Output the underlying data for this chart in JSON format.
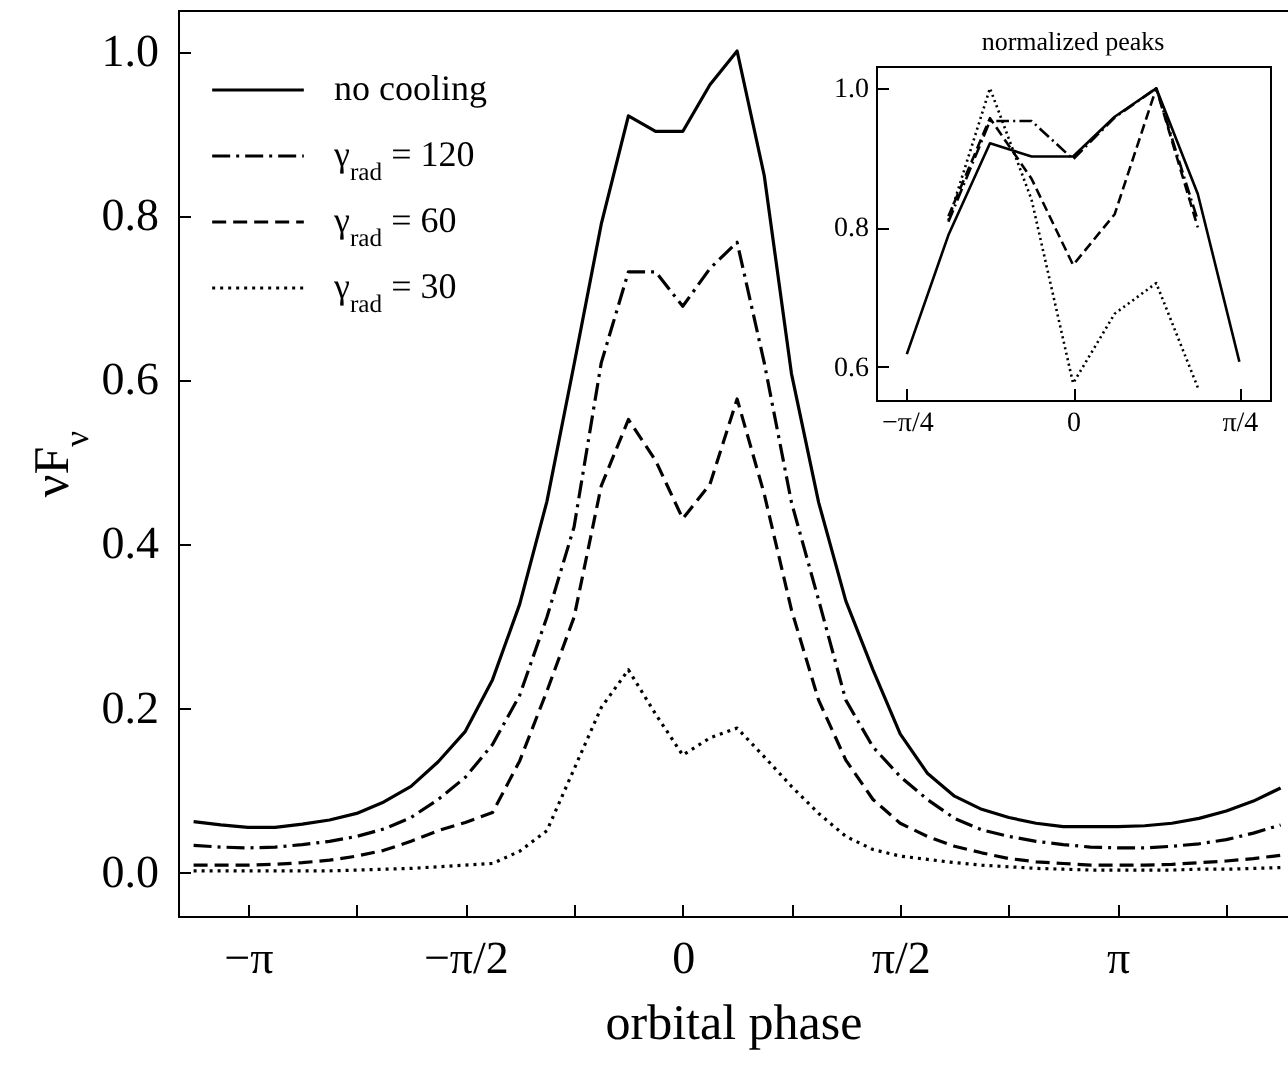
{
  "chart_data": [
    {
      "type": "line",
      "xlabel": "orbital phase",
      "ylabel": "νF$_{ν}$",
      "legend": "top left",
      "x": [
        -3.5343,
        -3.3379,
        -3.1416,
        -2.9452,
        -2.7489,
        -2.5525,
        -2.3562,
        -2.1598,
        -1.9635,
        -1.7671,
        -1.5708,
        -1.3744,
        -1.1781,
        -0.9817,
        -0.7854,
        -0.589,
        -0.3927,
        -0.1963,
        0,
        0.1963,
        0.3927,
        0.589,
        0.7854,
        0.9817,
        1.1781,
        1.3744,
        1.5708,
        1.7671,
        1.9635,
        2.1598,
        2.3562,
        2.5525,
        2.7489,
        2.9452,
        3.1416,
        3.3379,
        3.5343,
        3.7306,
        3.927,
        4.1233,
        4.3197
      ],
      "series": [
        {
          "name": "no cooling",
          "color": "#000000",
          "line_style": "solid",
          "values": [
            0.061,
            0.057,
            0.054,
            0.054,
            0.058,
            0.063,
            0.071,
            0.085,
            0.104,
            0.134,
            0.171,
            0.234,
            0.326,
            0.451,
            0.618,
            0.789,
            0.921,
            0.902,
            0.902,
            0.959,
            1.0,
            0.848,
            0.607,
            0.45,
            0.33,
            0.246,
            0.168,
            0.12,
            0.092,
            0.076,
            0.066,
            0.059,
            0.055,
            0.055,
            0.055,
            0.056,
            0.059,
            0.065,
            0.074,
            0.086,
            0.102
          ]
        },
        {
          "name": "γ$_{rad}$ = 120",
          "color": "#000000",
          "line_style": "dashdot",
          "values": [
            0.032,
            0.03,
            0.029,
            0.03,
            0.033,
            0.037,
            0.043,
            0.052,
            0.066,
            0.088,
            0.115,
            0.155,
            0.215,
            0.31,
            0.42,
            0.62,
            0.731,
            0.731,
            0.689,
            0.735,
            0.767,
            0.62,
            0.45,
            0.331,
            0.209,
            0.152,
            0.116,
            0.088,
            0.065,
            0.051,
            0.043,
            0.037,
            0.033,
            0.03,
            0.029,
            0.029,
            0.031,
            0.034,
            0.039,
            0.047,
            0.057
          ]
        },
        {
          "name": "γ$_{rad}$ = 60",
          "color": "#000000",
          "line_style": "dashed",
          "values": [
            0.008,
            0.008,
            0.008,
            0.009,
            0.011,
            0.014,
            0.019,
            0.026,
            0.037,
            0.05,
            0.06,
            0.072,
            0.135,
            0.22,
            0.31,
            0.47,
            0.551,
            0.501,
            0.43,
            0.472,
            0.576,
            0.46,
            0.319,
            0.209,
            0.136,
            0.088,
            0.059,
            0.043,
            0.031,
            0.023,
            0.016,
            0.012,
            0.01,
            0.008,
            0.008,
            0.008,
            0.009,
            0.011,
            0.013,
            0.016,
            0.02
          ]
        },
        {
          "name": "γ$_{rad}$ = 30",
          "color": "#000000",
          "line_style": "dotted",
          "values": [
            0.001,
            0.001,
            0.001,
            0.001,
            0.001,
            0.001,
            0.002,
            0.003,
            0.004,
            0.006,
            0.008,
            0.01,
            0.025,
            0.05,
            0.125,
            0.2,
            0.246,
            0.192,
            0.142,
            0.163,
            0.175,
            0.14,
            0.104,
            0.071,
            0.043,
            0.027,
            0.019,
            0.015,
            0.011,
            0.008,
            0.006,
            0.004,
            0.003,
            0.002,
            0.002,
            0.002,
            0.002,
            0.003,
            0.003,
            0.004,
            0.005
          ]
        }
      ],
      "xlim": [
        -3.647,
        4.373
      ],
      "ylim": [
        -0.054,
        1.05
      ],
      "xticks": [
        {
          "value": -3.14159,
          "label": "−π"
        },
        {
          "value": -2.35619,
          "label": null
        },
        {
          "value": -1.5708,
          "label": "−π/2"
        },
        {
          "value": -0.7854,
          "label": null
        },
        {
          "value": 0,
          "label": "0"
        },
        {
          "value": 0.7854,
          "label": null
        },
        {
          "value": 1.5708,
          "label": "π/2"
        },
        {
          "value": 2.35619,
          "label": null
        },
        {
          "value": 3.14159,
          "label": "π"
        },
        {
          "value": 3.92699,
          "label": null
        }
      ],
      "yticks": [
        {
          "value": 0,
          "label": "0.0"
        },
        {
          "value": 0.2,
          "label": "0.2"
        },
        {
          "value": 0.4,
          "label": "0.4"
        },
        {
          "value": 0.6,
          "label": "0.6"
        },
        {
          "value": 0.8,
          "label": "0.8"
        },
        {
          "value": 1,
          "label": "1.0"
        }
      ]
    },
    {
      "type": "line",
      "title": "normalized peaks",
      "x": [
        -0.7854,
        -0.589,
        -0.3927,
        -0.1963,
        0,
        0.1963,
        0.3927,
        0.589,
        0.7854
      ],
      "series": [
        {
          "color": "#000000",
          "line_style": "solid",
          "values": [
            0.618,
            0.789,
            0.921,
            0.902,
            0.902,
            0.959,
            1.0,
            0.848,
            0.607
          ]
        },
        {
          "color": "#000000",
          "line_style": "dashdot",
          "values": [
            null,
            0.808,
            0.953,
            0.953,
            0.898,
            0.958,
            1.0,
            0.81,
            null
          ]
        },
        {
          "color": "#000000",
          "line_style": "dashed",
          "values": [
            null,
            0.816,
            0.957,
            0.87,
            0.746,
            0.819,
            1.0,
            0.8,
            null
          ]
        },
        {
          "color": "#000000",
          "line_style": "dotted",
          "values": [
            null,
            0.81,
            1.0,
            0.84,
            0.576,
            0.676,
            0.72,
            0.57,
            null
          ]
        }
      ],
      "xlim": [
        -0.931,
        0.93
      ],
      "ylim": [
        0.552,
        1.032
      ],
      "xticks": [
        {
          "value": -0.7854,
          "label": "−π/4"
        },
        {
          "value": 0,
          "label": "0"
        },
        {
          "value": 0.7854,
          "label": "π/4"
        }
      ],
      "yticks": [
        {
          "value": 0.6,
          "label": "0.6"
        },
        {
          "value": 0.8,
          "label": "0.8"
        },
        {
          "value": 1,
          "label": "1.0"
        }
      ]
    }
  ]
}
